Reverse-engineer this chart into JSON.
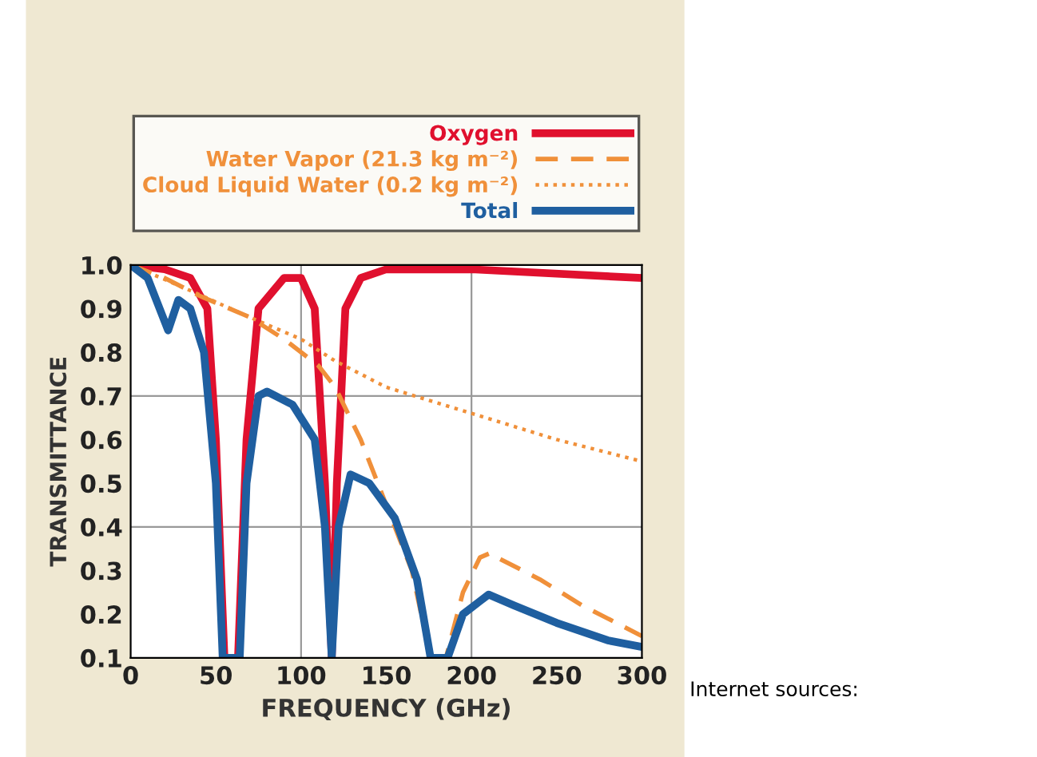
{
  "chart_data": {
    "type": "line",
    "xlabel": "FREQUENCY (GHz)",
    "ylabel": "TRANSMITTANCE",
    "xlim": [
      0,
      300
    ],
    "xticks": [
      0,
      50,
      100,
      150,
      200,
      250,
      300
    ],
    "ylim": [
      0.1,
      1.0
    ],
    "yticks": [
      0.1,
      0.2,
      0.3,
      0.4,
      0.5,
      0.6,
      0.7,
      0.8,
      0.9,
      {
        "value": 1.0,
        "label": "1.0"
      }
    ],
    "legend": "top",
    "grid": false,
    "ref_lines": [
      {
        "axis": "x",
        "value": 100,
        "color": "#999999"
      },
      {
        "axis": "x",
        "value": 200,
        "color": "#999999"
      },
      {
        "axis": "y",
        "value": 0.4,
        "color": "#999999"
      },
      {
        "axis": "y",
        "value": 0.7,
        "color": "#999999"
      }
    ],
    "annotations": [
      "Internet sources:"
    ],
    "series": [
      {
        "name": "Oxygen",
        "color": "#e0102e",
        "line_style": "solid",
        "x": [
          0,
          20,
          35,
          45,
          50,
          55,
          63,
          68,
          75,
          90,
          100,
          108,
          114,
          118,
          121,
          126,
          135,
          150,
          200,
          300
        ],
        "values": [
          1.0,
          0.99,
          0.97,
          0.9,
          0.6,
          0.1,
          0.1,
          0.6,
          0.9,
          0.97,
          0.97,
          0.9,
          0.5,
          0.1,
          0.5,
          0.9,
          0.97,
          0.99,
          0.99,
          0.97
        ]
      },
      {
        "name": "Water Vapor (21.3 kg m⁻²)",
        "color": "#f0903a",
        "line_style": "dashed",
        "x": [
          0,
          20,
          40,
          70,
          90,
          110,
          120,
          135,
          150,
          165,
          176,
          185,
          195,
          205,
          211,
          215,
          240,
          265,
          300
        ],
        "values": [
          1.0,
          0.97,
          0.93,
          0.88,
          0.83,
          0.77,
          0.72,
          0.6,
          0.45,
          0.3,
          0.1,
          0.1,
          0.25,
          0.33,
          0.34,
          0.33,
          0.28,
          0.22,
          0.15
        ]
      },
      {
        "name": "Cloud Liquid Water (0.2 kg m⁻²)",
        "color": "#f0903a",
        "line_style": "dotted",
        "x": [
          0,
          30,
          70,
          100,
          120,
          150,
          200,
          250,
          300
        ],
        "values": [
          1.0,
          0.95,
          0.88,
          0.83,
          0.78,
          0.72,
          0.66,
          0.6,
          0.55
        ]
      },
      {
        "name": "Total",
        "color": "#1f5fa0",
        "line_style": "solid",
        "x": [
          0,
          10,
          17,
          22,
          28,
          35,
          43,
          50,
          54,
          64,
          68,
          75,
          80,
          95,
          108,
          114,
          118,
          122,
          129,
          140,
          155,
          168,
          176,
          186,
          195,
          205,
          210,
          225,
          250,
          280,
          300
        ],
        "values": [
          1.0,
          0.97,
          0.9,
          0.85,
          0.92,
          0.9,
          0.8,
          0.5,
          0.1,
          0.1,
          0.5,
          0.7,
          0.71,
          0.68,
          0.6,
          0.4,
          0.1,
          0.4,
          0.52,
          0.5,
          0.42,
          0.28,
          0.1,
          0.1,
          0.2,
          0.23,
          0.245,
          0.22,
          0.18,
          0.14,
          0.125
        ]
      }
    ]
  }
}
